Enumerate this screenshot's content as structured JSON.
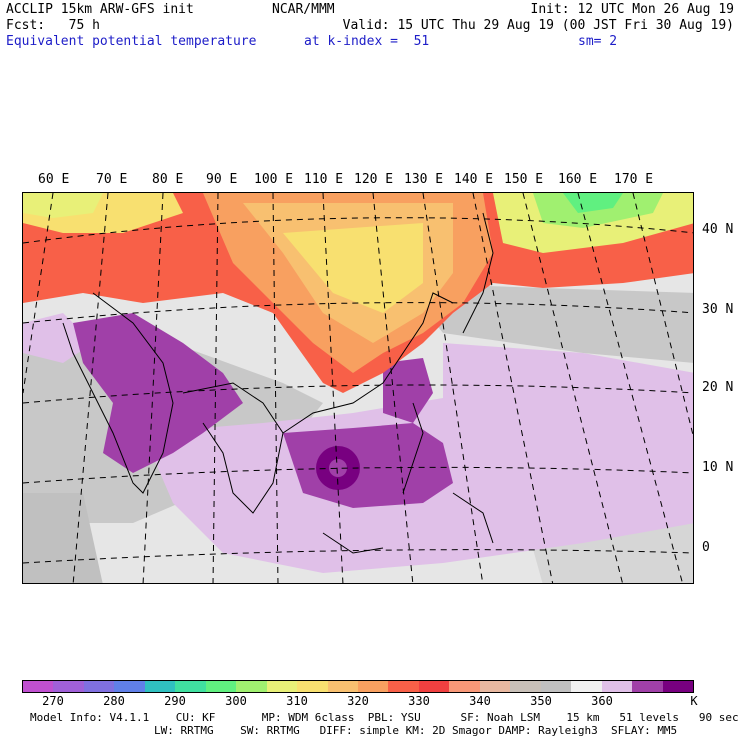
{
  "header": {
    "l1": "ACCLIP 15km ARW-GFS init",
    "l2": "Fcst:   75 h",
    "l3": "Equivalent potential temperature",
    "c1": "NCAR/MMM",
    "c3": "at k-index =  51",
    "r1": "Init: 12 UTC Mon 26 Aug 19",
    "r2": "Valid: 15 UTC Thu 29 Aug 19 (00 JST Fri 30 Aug 19)",
    "r3": "sm= 2"
  },
  "map": {
    "lon_labels": [
      "60 E",
      "70 E",
      "80 E",
      "90 E",
      "100 E",
      "110 E",
      "120 E",
      "130 E",
      "140 E",
      "150 E",
      "160 E",
      "170 E"
    ],
    "lat_labels": [
      "40 N",
      "30 N",
      "20 N",
      "10 N",
      "0"
    ]
  },
  "colorbar": {
    "ticks": [
      "270",
      "280",
      "290",
      "300",
      "310",
      "320",
      "330",
      "340",
      "350",
      "360"
    ],
    "unit": "K",
    "colors": [
      "#c050d0",
      "#a060d8",
      "#8070e0",
      "#6080e8",
      "#30c0c0",
      "#40e0a0",
      "#60f080",
      "#a0f070",
      "#e8f078",
      "#f8e070",
      "#f8c070",
      "#f8a060",
      "#f86048",
      "#f04040",
      "#f89878",
      "#e8b8a0",
      "#c8c0b8",
      "#c0c0c0",
      "#f0f0f0",
      "#e0c0e8",
      "#a040a8",
      "#780080"
    ]
  },
  "footer": {
    "f1": "Model Info: V4.1.1    CU: KF       MP: WDM 6class  PBL: YSU      SF: Noah LSM    15 km   51 levels   90 sec",
    "f2": "LW: RRTMG    SW: RRTMG   DIFF: simple KM: 2D Smagor DAMP: Rayleigh3  SFLAY: MM5"
  }
}
